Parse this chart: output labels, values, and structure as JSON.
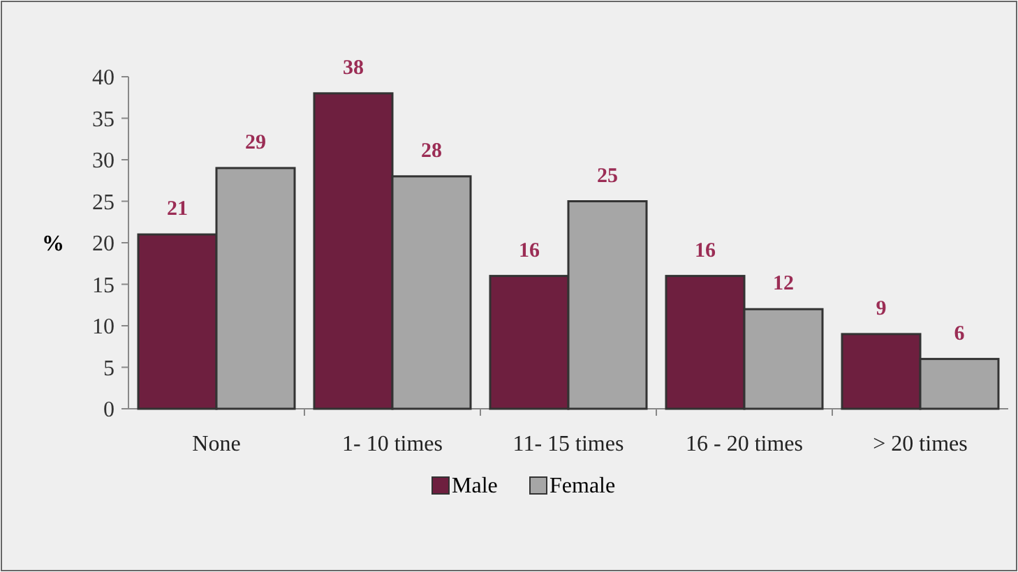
{
  "chart_data": {
    "type": "bar",
    "ylabel": "%",
    "categories": [
      "None",
      "1- 10 times",
      "11- 15 times",
      "16 - 20 times",
      "> 20 times"
    ],
    "series": [
      {
        "name": "Male",
        "color": "#6e1f3f",
        "values": [
          21,
          38,
          16,
          16,
          9
        ]
      },
      {
        "name": "Female",
        "color": "#a6a6a6",
        "values": [
          29,
          28,
          25,
          12,
          6
        ]
      }
    ],
    "ylim": [
      0,
      40
    ],
    "yticks": [
      0,
      5,
      10,
      15,
      20,
      25,
      30,
      35,
      40
    ],
    "data_labels": true,
    "legend": "bottom",
    "grid": false
  }
}
